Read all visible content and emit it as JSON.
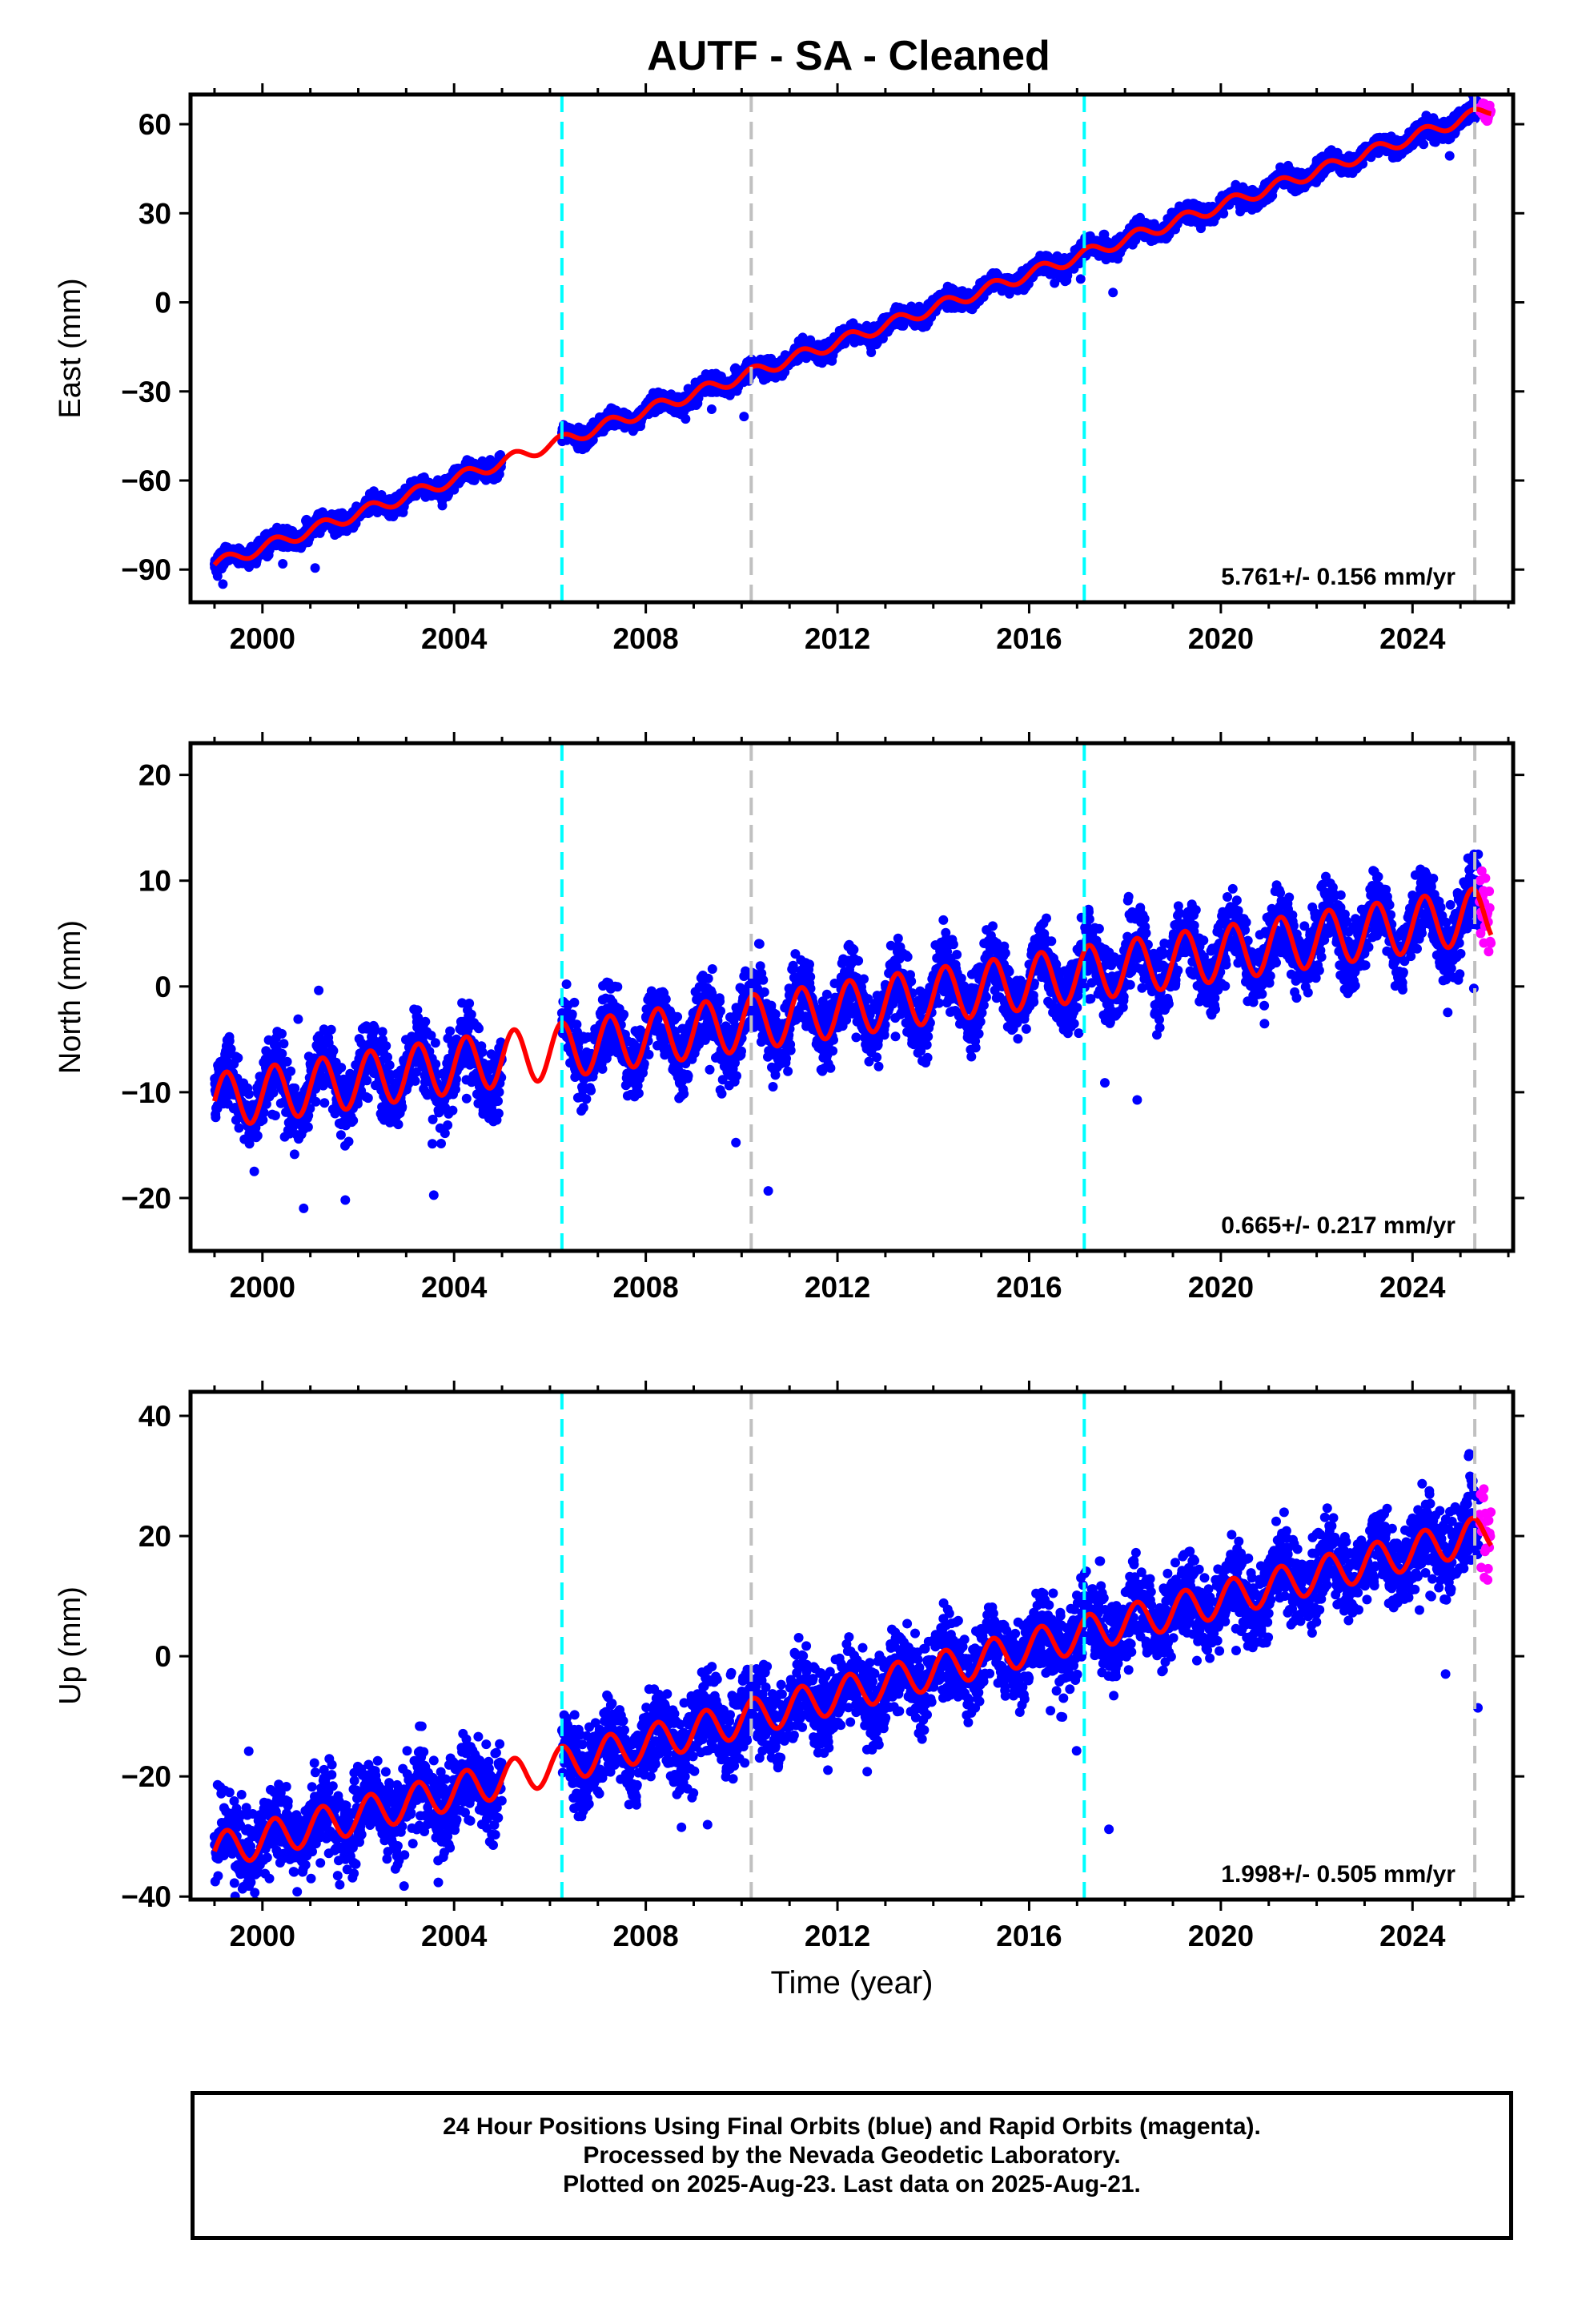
{
  "title": "AUTF  - SA - Cleaned",
  "footer": {
    "line1": "24 Hour Positions Using Final Orbits (blue) and Rapid Orbits (magenta).",
    "line2": "Processed by the Nevada Geodetic Laboratory.",
    "line3": "Plotted on 2025-Aug-23. Last data on 2025-Aug-21."
  },
  "colors": {
    "final_orbits": "#0000ff",
    "rapid_orbits": "#ff00ff",
    "model_fit": "#ff0000",
    "equipment_change": "#00ffff",
    "other_event": "#c0c0c0"
  },
  "chart_data": [
    {
      "type": "scatter",
      "component": "east",
      "ylabel": "East (mm)",
      "xlabel": "",
      "xlim": [
        1998.5,
        2026.1
      ],
      "ylim": [
        -101,
        70
      ],
      "yticks": [
        -90,
        -60,
        -30,
        0,
        30,
        60
      ],
      "xticks": [
        2000,
        2004,
        2008,
        2012,
        2016,
        2020,
        2024
      ],
      "rate_label": "5.761+/- 0.156 mm/yr",
      "model": {
        "rate": 5.761,
        "ref_year": 2012.0,
        "ref_value": -13.5,
        "seasonal_amplitude": 2.0,
        "steps": []
      },
      "noise": 3.0,
      "final_orbits_range": [
        1999.0,
        2025.4
      ],
      "rapid_orbits_range": [
        2025.4,
        2025.64
      ],
      "gaps": [
        [
          2005.0,
          2006.25
        ]
      ],
      "events_cyan": [
        2006.25,
        2017.15
      ],
      "events_gray": [
        2010.2,
        2025.3
      ]
    },
    {
      "type": "scatter",
      "component": "north",
      "ylabel": "North (mm)",
      "xlabel": "",
      "xlim": [
        1998.5,
        2026.1
      ],
      "ylim": [
        -25,
        23
      ],
      "yticks": [
        -20,
        -10,
        0,
        10,
        20
      ],
      "xticks": [
        2000,
        2004,
        2008,
        2012,
        2016,
        2020,
        2024
      ],
      "rate_label": "0.665+/- 0.217 mm/yr",
      "model": {
        "rate": 0.665,
        "ref_year": 2012.0,
        "ref_value": -2.2,
        "seasonal_amplitude": 2.6,
        "steps": []
      },
      "noise": 3.2,
      "final_orbits_range": [
        1999.0,
        2025.4
      ],
      "rapid_orbits_range": [
        2025.4,
        2025.64
      ],
      "gaps": [
        [
          2005.0,
          2006.25
        ]
      ],
      "events_cyan": [
        2006.25,
        2017.15
      ],
      "events_gray": [
        2010.2,
        2025.3
      ]
    },
    {
      "type": "scatter",
      "component": "up",
      "ylabel": "Up (mm)",
      "xlabel": "Time (year)",
      "xlim": [
        1998.5,
        2026.1
      ],
      "ylim": [
        -40.5,
        44
      ],
      "yticks": [
        -40,
        -20,
        0,
        20,
        40
      ],
      "xticks": [
        2000,
        2004,
        2008,
        2012,
        2016,
        2020,
        2024
      ],
      "rate_label": "1.998+/- 0.505 mm/yr",
      "model": {
        "rate": 1.998,
        "ref_year": 2012.0,
        "ref_value": -6.5,
        "seasonal_amplitude": 3.0,
        "steps": []
      },
      "noise": 6.5,
      "final_orbits_range": [
        1999.0,
        2025.4
      ],
      "rapid_orbits_range": [
        2025.4,
        2025.64
      ],
      "gaps": [
        [
          2005.0,
          2006.25
        ]
      ],
      "events_cyan": [
        2006.25,
        2017.15
      ],
      "events_gray": [
        2010.2,
        2025.3
      ]
    }
  ]
}
